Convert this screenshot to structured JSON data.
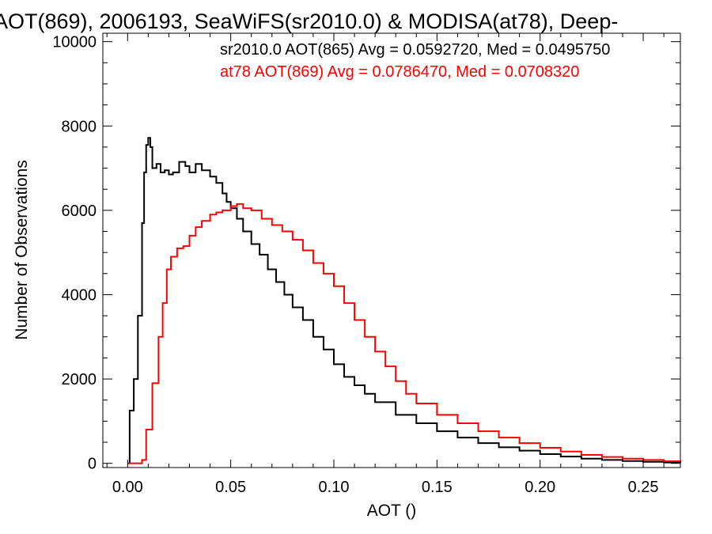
{
  "chart_data": {
    "type": "line",
    "title": "AOT(869), 2006193, SeaWiFS(sr2010.0) & MODISA(at78), Deep-",
    "xlabel": "AOT ()",
    "ylabel": "Number of Observations",
    "xlim": [
      -0.012,
      0.268
    ],
    "ylim": [
      -100,
      10200
    ],
    "x_ticks": [
      0.0,
      0.05,
      0.1,
      0.15,
      0.2,
      0.25
    ],
    "x_tick_labels": [
      "0.00",
      "0.05",
      "0.10",
      "0.15",
      "0.20",
      "0.25"
    ],
    "y_ticks": [
      0,
      2000,
      4000,
      6000,
      8000,
      10000
    ],
    "y_tick_labels": [
      "0",
      "2000",
      "4000",
      "6000",
      "8000",
      "10000"
    ],
    "grid": false,
    "legend": "top-right",
    "annotations": [
      "sr2010.0 AOT(865) Avg = 0.0592720, Med = 0.0495750",
      "at78 AOT(869) Avg = 0.0786470, Med = 0.0708320"
    ],
    "series": [
      {
        "color": "#000000",
        "step": true,
        "x": [
          0.0,
          0.001,
          0.003,
          0.005,
          0.007,
          0.008,
          0.009,
          0.01,
          0.011,
          0.012,
          0.014,
          0.016,
          0.018,
          0.02,
          0.022,
          0.025,
          0.028,
          0.03,
          0.033,
          0.036,
          0.04,
          0.043,
          0.046,
          0.048,
          0.05,
          0.053,
          0.056,
          0.06,
          0.064,
          0.068,
          0.072,
          0.076,
          0.08,
          0.085,
          0.09,
          0.095,
          0.1,
          0.105,
          0.11,
          0.115,
          0.12,
          0.13,
          0.14,
          0.15,
          0.16,
          0.17,
          0.18,
          0.19,
          0.2,
          0.21,
          0.22,
          0.23,
          0.24,
          0.25,
          0.26,
          0.268
        ],
        "y": [
          0,
          1250,
          2000,
          3500,
          5700,
          6900,
          7550,
          7720,
          7500,
          7000,
          7100,
          6900,
          6950,
          6850,
          6900,
          7150,
          7050,
          6900,
          7100,
          6950,
          6800,
          6650,
          6400,
          6200,
          6050,
          5800,
          5500,
          5200,
          4950,
          4600,
          4300,
          4000,
          3700,
          3400,
          3000,
          2700,
          2350,
          2050,
          1850,
          1650,
          1450,
          1150,
          950,
          760,
          610,
          480,
          380,
          300,
          220,
          160,
          110,
          80,
          55,
          35,
          20,
          10
        ]
      },
      {
        "color": "#ff0000",
        "step": true,
        "x": [
          0.0,
          0.006,
          0.007,
          0.009,
          0.012,
          0.015,
          0.017,
          0.019,
          0.021,
          0.024,
          0.027,
          0.03,
          0.033,
          0.036,
          0.04,
          0.043,
          0.046,
          0.05,
          0.053,
          0.056,
          0.06,
          0.065,
          0.07,
          0.075,
          0.08,
          0.085,
          0.09,
          0.095,
          0.1,
          0.105,
          0.11,
          0.115,
          0.12,
          0.125,
          0.13,
          0.135,
          0.14,
          0.15,
          0.16,
          0.17,
          0.18,
          0.19,
          0.2,
          0.21,
          0.22,
          0.23,
          0.24,
          0.25,
          0.26,
          0.268
        ],
        "y": [
          0,
          0,
          80,
          800,
          1900,
          3000,
          3800,
          4600,
          4900,
          5100,
          5150,
          5400,
          5600,
          5750,
          5900,
          5950,
          6000,
          6100,
          6150,
          6050,
          6000,
          5800,
          5650,
          5500,
          5300,
          5050,
          4750,
          4500,
          4200,
          3800,
          3400,
          3000,
          2650,
          2300,
          1950,
          1650,
          1420,
          1150,
          950,
          760,
          610,
          480,
          370,
          280,
          200,
          150,
          110,
          80,
          50,
          30
        ]
      }
    ]
  }
}
